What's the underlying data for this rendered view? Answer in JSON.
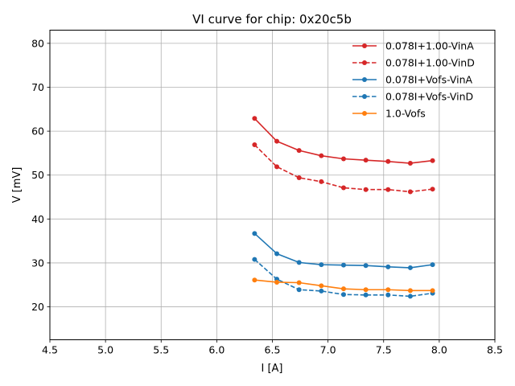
{
  "chart_data": {
    "type": "line",
    "title": "VI curve for chip: 0x20c5b",
    "xlabel": "I [A]",
    "ylabel": "V [mV]",
    "xlim": [
      4.5,
      8.5
    ],
    "ylim": [
      12.5,
      83
    ],
    "xticks": [
      4.5,
      5.0,
      5.5,
      6.0,
      6.5,
      7.0,
      7.5,
      8.0,
      8.5
    ],
    "xtick_labels": [
      "4.5",
      "5.0",
      "5.5",
      "6.0",
      "6.5",
      "7.0",
      "7.5",
      "8.0",
      "8.5"
    ],
    "yticks": [
      20,
      30,
      40,
      50,
      60,
      70,
      80
    ],
    "ytick_labels": [
      "20",
      "30",
      "40",
      "50",
      "60",
      "70",
      "80"
    ],
    "grid": true,
    "legend_position": "top-right",
    "x": [
      6.34,
      6.54,
      6.74,
      6.94,
      7.14,
      7.34,
      7.54,
      7.74,
      7.94
    ],
    "series": [
      {
        "name": "0.078I+1.00-VinA",
        "color": "#d62728",
        "dashed": false,
        "values": [
          62.9,
          57.7,
          55.6,
          54.4,
          53.7,
          53.4,
          53.1,
          52.7,
          53.3
        ]
      },
      {
        "name": "0.078I+1.00-VinD",
        "color": "#d62728",
        "dashed": true,
        "values": [
          56.9,
          51.9,
          49.4,
          48.5,
          47.1,
          46.7,
          46.7,
          46.2,
          46.8
        ]
      },
      {
        "name": "0.078I+Vofs-VinA",
        "color": "#1f77b4",
        "dashed": false,
        "values": [
          36.7,
          32.1,
          30.1,
          29.6,
          29.5,
          29.4,
          29.1,
          28.9,
          29.6
        ]
      },
      {
        "name": "0.078I+Vofs-VinD",
        "color": "#1f77b4",
        "dashed": true,
        "values": [
          30.8,
          26.3,
          23.9,
          23.6,
          22.8,
          22.7,
          22.7,
          22.4,
          23.1
        ]
      },
      {
        "name": "1.0-Vofs",
        "color": "#ff7f0e",
        "dashed": false,
        "values": [
          26.1,
          25.6,
          25.5,
          24.8,
          24.1,
          23.9,
          23.9,
          23.7,
          23.7
        ]
      }
    ]
  }
}
